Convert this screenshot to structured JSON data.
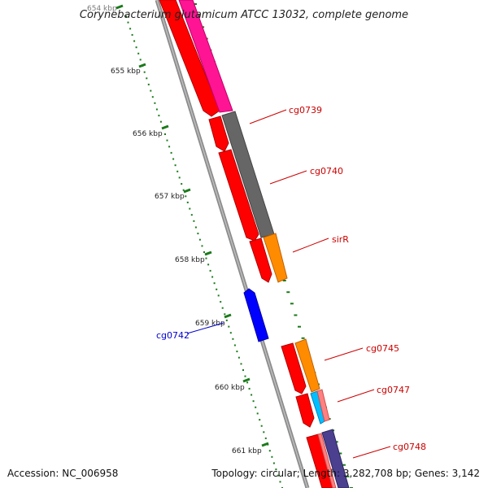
{
  "title": "Corynebacterium glutamicum ATCC 13032, complete genome",
  "accession": "Accession: NC_006958",
  "summary": "Topology: circular; Length: 3,282,708 bp; Genes: 3,142",
  "colors": {
    "backbone": "#8c8c8c",
    "tick": "#1a7a1a",
    "label_forward": "#cc0000",
    "label_reverse": "#0000cc",
    "gene_red": "#ff0000",
    "gene_magenta": "#ff1493",
    "gene_gray": "#666666",
    "gene_orange": "#ff8c00",
    "gene_blue": "#0000ff",
    "gene_cyan": "#00bfff",
    "gene_pink": "#ff8080",
    "gene_purple": "#4b3f8f"
  },
  "ticks": [
    "654 kbp",
    "655 kbp",
    "656 kbp",
    "657 kbp",
    "658 kbp",
    "659 kbp",
    "660 kbp",
    "661 kbp"
  ],
  "gene_labels": {
    "cg0739": "cg0739",
    "cg0740": "cg0740",
    "sirR": "sirR",
    "cg0742": "cg0742",
    "cg0745": "cg0745",
    "cg0747": "cg0747",
    "cg0748": "cg0748"
  }
}
